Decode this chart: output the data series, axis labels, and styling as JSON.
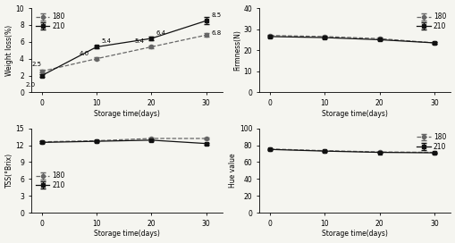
{
  "storage_days": [
    0,
    10,
    20,
    30
  ],
  "weight_loss_180": [
    2.5,
    4.0,
    5.4,
    6.8
  ],
  "weight_loss_210": [
    2.0,
    5.4,
    6.4,
    8.5
  ],
  "weight_loss_err_180": [
    0.15,
    0.15,
    0.15,
    0.2
  ],
  "weight_loss_err_210": [
    0.15,
    0.15,
    0.2,
    0.4
  ],
  "weight_loss_labels_180": [
    "2.5",
    "4.0",
    "5.4",
    "6.8"
  ],
  "weight_loss_labels_210": [
    "2.0",
    "5.4",
    "6.4",
    "8.5"
  ],
  "firmness_180": [
    27.0,
    26.5,
    25.5,
    23.5
  ],
  "firmness_210": [
    26.5,
    26.0,
    25.0,
    23.5
  ],
  "firmness_err_180": [
    0.4,
    0.3,
    0.4,
    0.3
  ],
  "firmness_err_210": [
    0.4,
    0.3,
    0.3,
    0.3
  ],
  "tss_180": [
    12.6,
    12.8,
    13.2,
    13.2
  ],
  "tss_210": [
    12.5,
    12.7,
    12.9,
    12.3
  ],
  "tss_err_180": [
    0.15,
    0.15,
    0.15,
    0.15
  ],
  "tss_err_210": [
    0.15,
    0.15,
    0.15,
    0.15
  ],
  "hue_180": [
    75.5,
    73.5,
    72.0,
    71.5
  ],
  "hue_210": [
    75.0,
    73.0,
    71.5,
    71.0
  ],
  "hue_err_180": [
    0.5,
    0.5,
    0.5,
    0.5
  ],
  "hue_err_210": [
    0.5,
    0.5,
    0.5,
    0.5
  ],
  "ylabel_weight": "Weight loss(%)",
  "ylabel_firmness": "Firmness(N)",
  "ylabel_tss": "TSS(°Brix)",
  "ylabel_hue": "Hue value",
  "xlabel": "Storage time(days)",
  "legend_180": "180",
  "legend_210": "210",
  "color_180": "#666666",
  "color_210": "#111111",
  "bg_color": "#f5f5f0",
  "weight_ylim": [
    0,
    10
  ],
  "weight_yticks": [
    0,
    2,
    4,
    6,
    8,
    10
  ],
  "firmness_ylim": [
    0,
    40
  ],
  "firmness_yticks": [
    0,
    10,
    20,
    30,
    40
  ],
  "tss_ylim": [
    0,
    15
  ],
  "tss_yticks": [
    0,
    3,
    6,
    9,
    12,
    15
  ],
  "hue_ylim": [
    0,
    100
  ],
  "hue_yticks": [
    0,
    20,
    40,
    60,
    80,
    100
  ]
}
